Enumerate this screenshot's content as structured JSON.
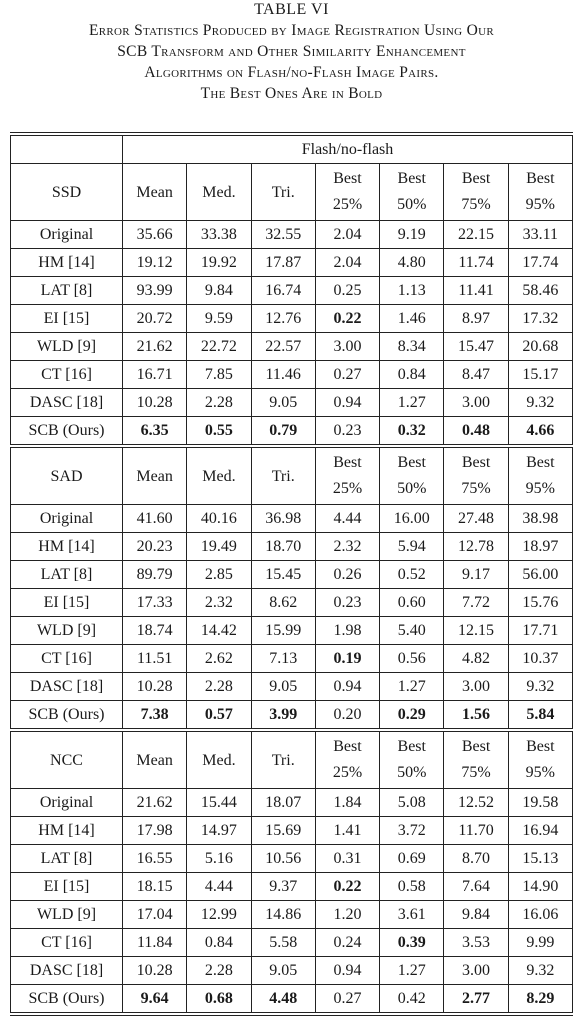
{
  "caption": {
    "title": "TABLE VI",
    "lines": [
      "Error Statistics Produced by Image Registration Using Our",
      "SCB Transform and Other Similarity Enhancement",
      "Algorithms on Flash/no-Flash Image Pairs.",
      "The Best Ones Are in Bold"
    ]
  },
  "table": {
    "group_header": "Flash/no-flash",
    "columns": [
      {
        "top": "Mean",
        "bottom": ""
      },
      {
        "top": "Med.",
        "bottom": ""
      },
      {
        "top": "Tri.",
        "bottom": ""
      },
      {
        "top": "Best",
        "bottom": "25%"
      },
      {
        "top": "Best",
        "bottom": "50%"
      },
      {
        "top": "Best",
        "bottom": "75%"
      },
      {
        "top": "Best",
        "bottom": "95%"
      }
    ],
    "sections": [
      {
        "metric": "SSD",
        "rows": [
          {
            "method": "Original",
            "values": [
              "35.66",
              "33.38",
              "32.55",
              "2.04",
              "9.19",
              "22.15",
              "33.11"
            ],
            "bold": []
          },
          {
            "method": "HM [14]",
            "values": [
              "19.12",
              "19.92",
              "17.87",
              "2.04",
              "4.80",
              "11.74",
              "17.74"
            ],
            "bold": []
          },
          {
            "method": "LAT [8]",
            "values": [
              "93.99",
              "9.84",
              "16.74",
              "0.25",
              "1.13",
              "11.41",
              "58.46"
            ],
            "bold": []
          },
          {
            "method": "EI [15]",
            "values": [
              "20.72",
              "9.59",
              "12.76",
              "0.22",
              "1.46",
              "8.97",
              "17.32"
            ],
            "bold": [
              3
            ]
          },
          {
            "method": "WLD [9]",
            "values": [
              "21.62",
              "22.72",
              "22.57",
              "3.00",
              "8.34",
              "15.47",
              "20.68"
            ],
            "bold": []
          },
          {
            "method": "CT [16]",
            "values": [
              "16.71",
              "7.85",
              "11.46",
              "0.27",
              "0.84",
              "8.47",
              "15.17"
            ],
            "bold": []
          },
          {
            "method": "DASC [18]",
            "values": [
              "10.28",
              "2.28",
              "9.05",
              "0.94",
              "1.27",
              "3.00",
              "9.32"
            ],
            "bold": []
          },
          {
            "method": "SCB (Ours)",
            "values": [
              "6.35",
              "0.55",
              "0.79",
              "0.23",
              "0.32",
              "0.48",
              "4.66"
            ],
            "bold": [
              0,
              1,
              2,
              4,
              5,
              6
            ]
          }
        ]
      },
      {
        "metric": "SAD",
        "rows": [
          {
            "method": "Original",
            "values": [
              "41.60",
              "40.16",
              "36.98",
              "4.44",
              "16.00",
              "27.48",
              "38.98"
            ],
            "bold": []
          },
          {
            "method": "HM [14]",
            "values": [
              "20.23",
              "19.49",
              "18.70",
              "2.32",
              "5.94",
              "12.78",
              "18.97"
            ],
            "bold": []
          },
          {
            "method": "LAT [8]",
            "values": [
              "89.79",
              "2.85",
              "15.45",
              "0.26",
              "0.52",
              "9.17",
              "56.00"
            ],
            "bold": []
          },
          {
            "method": "EI [15]",
            "values": [
              "17.33",
              "2.32",
              "8.62",
              "0.23",
              "0.60",
              "7.72",
              "15.76"
            ],
            "bold": []
          },
          {
            "method": "WLD [9]",
            "values": [
              "18.74",
              "14.42",
              "15.99",
              "1.98",
              "5.40",
              "12.15",
              "17.71"
            ],
            "bold": []
          },
          {
            "method": "CT [16]",
            "values": [
              "11.51",
              "2.62",
              "7.13",
              "0.19",
              "0.56",
              "4.82",
              "10.37"
            ],
            "bold": [
              3
            ]
          },
          {
            "method": "DASC [18]",
            "values": [
              "10.28",
              "2.28",
              "9.05",
              "0.94",
              "1.27",
              "3.00",
              "9.32"
            ],
            "bold": []
          },
          {
            "method": "SCB (Ours)",
            "values": [
              "7.38",
              "0.57",
              "3.99",
              "0.20",
              "0.29",
              "1.56",
              "5.84"
            ],
            "bold": [
              0,
              1,
              2,
              4,
              5,
              6
            ]
          }
        ]
      },
      {
        "metric": "NCC",
        "rows": [
          {
            "method": "Original",
            "values": [
              "21.62",
              "15.44",
              "18.07",
              "1.84",
              "5.08",
              "12.52",
              "19.58"
            ],
            "bold": []
          },
          {
            "method": "HM [14]",
            "values": [
              "17.98",
              "14.97",
              "15.69",
              "1.41",
              "3.72",
              "11.70",
              "16.94"
            ],
            "bold": []
          },
          {
            "method": "LAT [8]",
            "values": [
              "16.55",
              "5.16",
              "10.56",
              "0.31",
              "0.69",
              "8.70",
              "15.13"
            ],
            "bold": []
          },
          {
            "method": "EI [15]",
            "values": [
              "18.15",
              "4.44",
              "9.37",
              "0.22",
              "0.58",
              "7.64",
              "14.90"
            ],
            "bold": [
              3
            ]
          },
          {
            "method": "WLD [9]",
            "values": [
              "17.04",
              "12.99",
              "14.86",
              "1.20",
              "3.61",
              "9.84",
              "16.06"
            ],
            "bold": []
          },
          {
            "method": "CT [16]",
            "values": [
              "11.84",
              "0.84",
              "5.58",
              "0.24",
              "0.39",
              "3.53",
              "9.99"
            ],
            "bold": [
              4
            ]
          },
          {
            "method": "DASC [18]",
            "values": [
              "10.28",
              "2.28",
              "9.05",
              "0.94",
              "1.27",
              "3.00",
              "9.32"
            ],
            "bold": []
          },
          {
            "method": "SCB (Ours)",
            "values": [
              "9.64",
              "0.68",
              "4.48",
              "0.27",
              "0.42",
              "2.77",
              "8.29"
            ],
            "bold": [
              0,
              1,
              2,
              5,
              6
            ]
          }
        ]
      }
    ]
  }
}
